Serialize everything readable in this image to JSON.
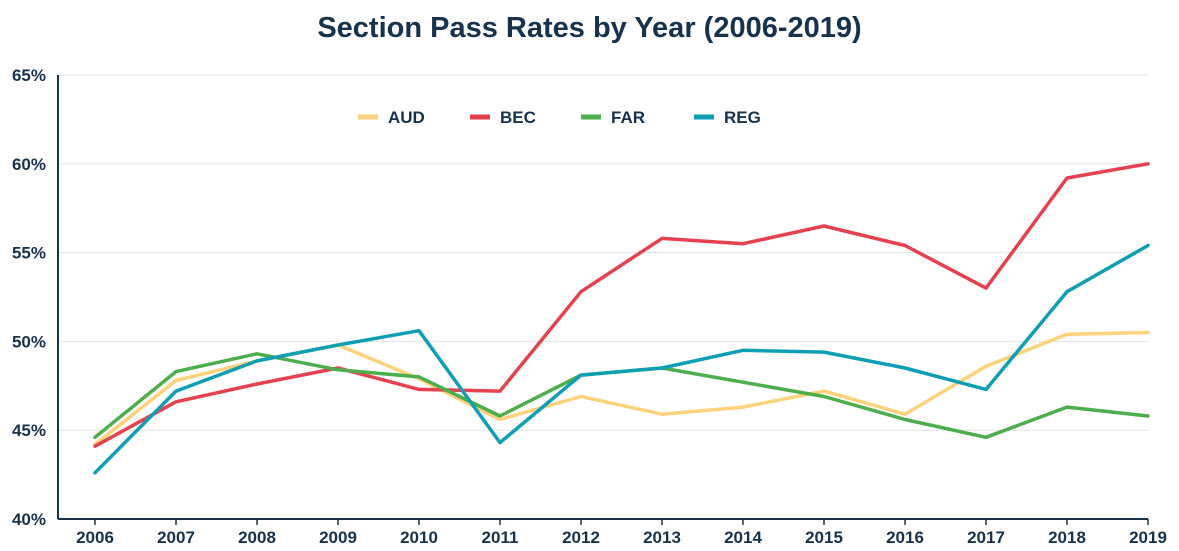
{
  "chart_data": {
    "type": "line",
    "title": "Section Pass Rates by Year (2006-2019)",
    "xlabel": "",
    "ylabel": "",
    "x": [
      "2006",
      "2007",
      "2008",
      "2009",
      "2010",
      "2011",
      "2012",
      "2013",
      "2014",
      "2015",
      "2016",
      "2017",
      "2018",
      "2019"
    ],
    "ylim": [
      40,
      65
    ],
    "yticks": [
      40,
      45,
      50,
      55,
      60,
      65
    ],
    "ytick_labels": [
      "40%",
      "45%",
      "50%",
      "55%",
      "60%",
      "65%"
    ],
    "grid": "horizontal",
    "legend_position": "top-center",
    "series": [
      {
        "name": "AUD",
        "color": "#fcd27a",
        "values": [
          44.2,
          47.8,
          48.9,
          49.8,
          47.9,
          45.6,
          46.9,
          45.9,
          46.3,
          47.2,
          45.9,
          48.6,
          50.4,
          50.5
        ]
      },
      {
        "name": "BEC",
        "color": "#e5414f",
        "values": [
          44.1,
          46.6,
          47.6,
          48.5,
          47.3,
          47.2,
          52.8,
          55.8,
          55.5,
          56.5,
          55.4,
          53.0,
          59.2,
          60.0
        ]
      },
      {
        "name": "FAR",
        "color": "#4cae4c",
        "values": [
          44.6,
          48.3,
          49.3,
          48.4,
          48.0,
          45.8,
          48.1,
          48.5,
          47.7,
          46.9,
          45.6,
          44.6,
          46.3,
          45.8
        ]
      },
      {
        "name": "REG",
        "color": "#0f9fb5",
        "values": [
          42.6,
          47.2,
          48.9,
          49.8,
          50.6,
          44.3,
          48.1,
          48.5,
          49.5,
          49.4,
          48.5,
          47.3,
          52.8,
          55.4
        ]
      }
    ]
  }
}
